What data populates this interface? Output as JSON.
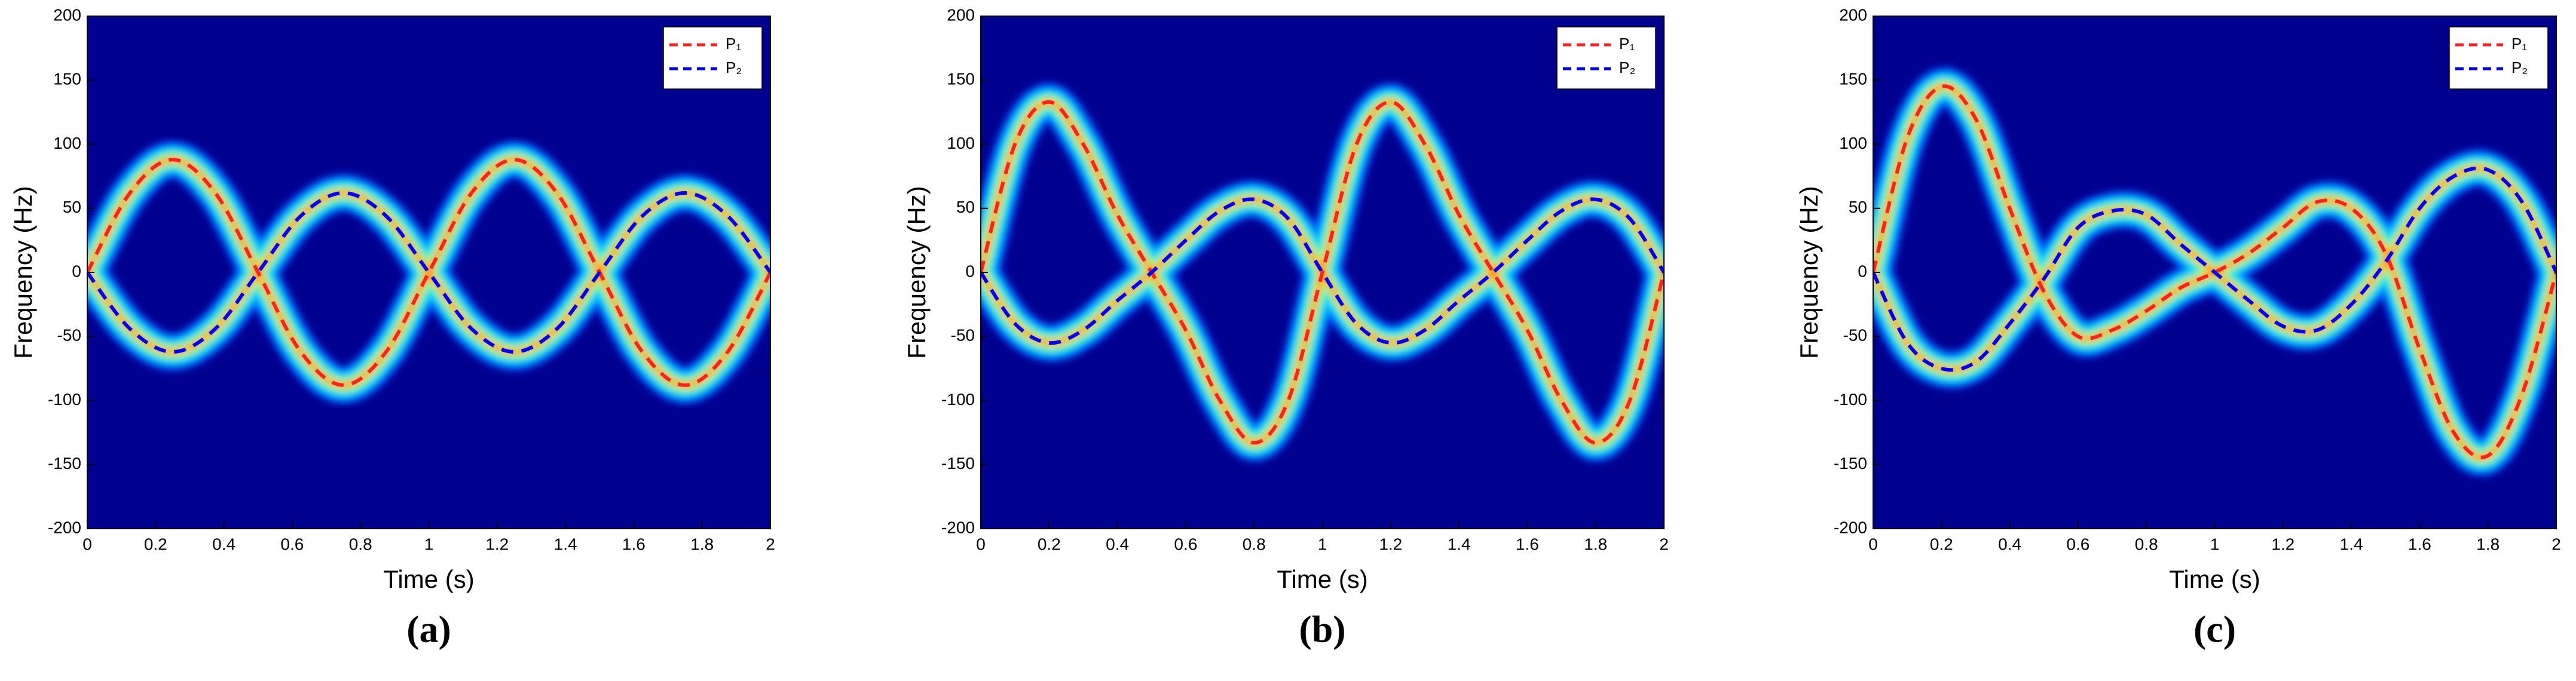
{
  "chart_data": [
    {
      "type": "line",
      "label": "(a)",
      "xlabel": "Time (s)",
      "ylabel": "Frequency (Hz)",
      "x": [
        0,
        0.125,
        0.25,
        0.375,
        0.5,
        0.625,
        0.75,
        0.875,
        1,
        1.125,
        1.25,
        1.375,
        1.5,
        1.625,
        1.75,
        1.875,
        2
      ],
      "series": [
        {
          "name": "P₁",
          "color": "#ff2020",
          "values": [
            0,
            62,
            88,
            62,
            0,
            -62,
            -88,
            -62,
            0,
            62,
            88,
            62,
            0,
            -62,
            -88,
            -62,
            0
          ]
        },
        {
          "name": "P₂",
          "color": "#0000ff",
          "values": [
            0,
            -44,
            -62,
            -44,
            0,
            44,
            62,
            44,
            0,
            -44,
            -62,
            -44,
            0,
            44,
            62,
            44,
            0
          ]
        }
      ],
      "xlim": [
        0,
        2
      ],
      "xticks": [
        0,
        0.2,
        0.4,
        0.6,
        0.8,
        1,
        1.2,
        1.4,
        1.6,
        1.8,
        2
      ],
      "ylim": [
        -200,
        200
      ],
      "yticks": [
        -200,
        -150,
        -100,
        -50,
        0,
        50,
        100,
        150,
        200
      ],
      "legend": "upper right",
      "background": "#00008f"
    },
    {
      "type": "line",
      "label": "(b)",
      "xlabel": "Time (s)",
      "ylabel": "Frequency (Hz)",
      "x": [
        0,
        0.1,
        0.2,
        0.3,
        0.4,
        0.5,
        0.6,
        0.7,
        0.8,
        0.9,
        1,
        1.1,
        1.2,
        1.3,
        1.4,
        1.5,
        1.6,
        1.7,
        1.8,
        1.9,
        2
      ],
      "series": [
        {
          "name": "P₁",
          "color": "#ff2020",
          "values": [
            0,
            100,
            133,
            100,
            45,
            0,
            -45,
            -100,
            -133,
            -100,
            0,
            100,
            133,
            100,
            45,
            0,
            -45,
            -100,
            -133,
            -100,
            0
          ]
        },
        {
          "name": "P₂",
          "color": "#0000ff",
          "values": [
            0,
            -40,
            -55,
            -45,
            -22,
            0,
            25,
            48,
            57,
            42,
            0,
            -40,
            -55,
            -45,
            -22,
            0,
            25,
            48,
            57,
            42,
            0
          ]
        }
      ],
      "xlim": [
        0,
        2
      ],
      "xticks": [
        0,
        0.2,
        0.4,
        0.6,
        0.8,
        1,
        1.2,
        1.4,
        1.6,
        1.8,
        2
      ],
      "ylim": [
        -200,
        200
      ],
      "yticks": [
        -200,
        -150,
        -100,
        -50,
        0,
        50,
        100,
        150,
        200
      ],
      "legend": "upper right",
      "background": "#00008f"
    },
    {
      "type": "line",
      "label": "(c)",
      "xlabel": "Time (s)",
      "ylabel": "Frequency (Hz)",
      "x": [
        0,
        0.1,
        0.2,
        0.3,
        0.4,
        0.5,
        0.6,
        0.7,
        0.8,
        0.9,
        1,
        1.1,
        1.2,
        1.3,
        1.4,
        1.5,
        1.6,
        1.7,
        1.8,
        1.9,
        2
      ],
      "series": [
        {
          "name": "P₁",
          "color": "#ff2020",
          "values": [
            0,
            105,
            145,
            120,
            50,
            -15,
            -50,
            -45,
            -30,
            -12,
            0,
            15,
            35,
            55,
            50,
            15,
            -60,
            -125,
            -143,
            -95,
            0
          ]
        },
        {
          "name": "P₂",
          "color": "#0000ff",
          "values": [
            0,
            -55,
            -75,
            -70,
            -40,
            -5,
            35,
            48,
            45,
            22,
            0,
            -22,
            -42,
            -45,
            -25,
            8,
            50,
            75,
            80,
            55,
            0
          ]
        }
      ],
      "xlim": [
        0,
        2
      ],
      "xticks": [
        0,
        0.2,
        0.4,
        0.6,
        0.8,
        1,
        1.2,
        1.4,
        1.6,
        1.8,
        2
      ],
      "ylim": [
        -200,
        200
      ],
      "yticks": [
        -200,
        -150,
        -100,
        -50,
        0,
        50,
        100,
        150,
        200
      ],
      "legend": "upper right",
      "background": "#00008f"
    }
  ]
}
